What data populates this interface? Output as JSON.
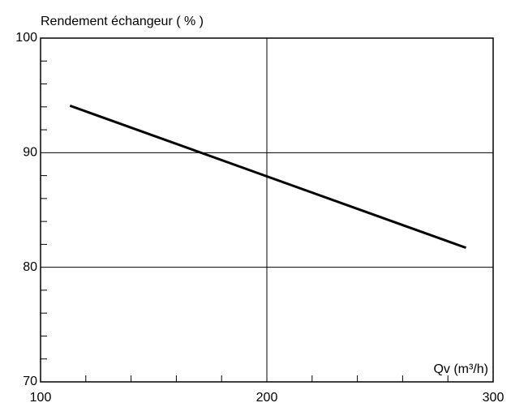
{
  "chart_data": {
    "type": "line",
    "ylabel": "Rendement échangeur ( % )",
    "xlabel": "Qv (m³/h)",
    "x": [
      113,
      288
    ],
    "series": [
      {
        "name": "Rendement",
        "color": "#000000",
        "values": [
          94.1,
          81.7
        ]
      }
    ],
    "xlim": [
      100,
      300
    ],
    "xticks": [
      100,
      200,
      300
    ],
    "xminorticks": [
      120,
      140,
      160,
      180,
      220,
      240,
      260,
      280
    ],
    "ylim": [
      70,
      100
    ],
    "yticks": [
      70,
      80,
      90,
      100
    ],
    "yminorticks": [
      72,
      74,
      76,
      78,
      82,
      84,
      86,
      88,
      92,
      94,
      96,
      98
    ],
    "grid": true
  }
}
